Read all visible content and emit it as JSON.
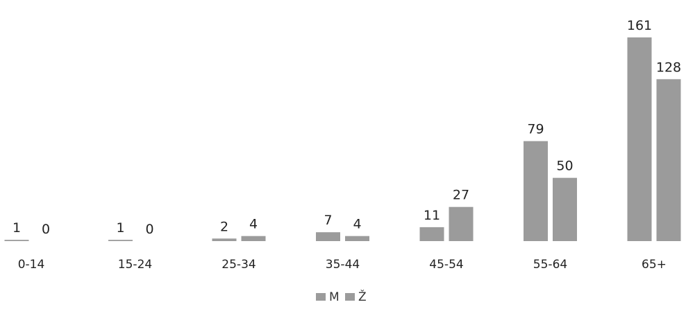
{
  "chart_data": {
    "type": "bar",
    "categories": [
      "0-14",
      "15-24",
      "25-34",
      "35-44",
      "45-54",
      "55-64",
      "65+"
    ],
    "series": [
      {
        "name": "M",
        "values": [
          1,
          1,
          2,
          7,
          11,
          79,
          161
        ],
        "color": "#9b9b9b"
      },
      {
        "name": "Ž",
        "values": [
          0,
          0,
          4,
          4,
          27,
          50,
          128
        ],
        "color": "#9b9b9b"
      }
    ],
    "ylim": [
      0,
      161
    ],
    "grid": false,
    "legend_position": "bottom-center",
    "data_labels": true,
    "axis_color": "#000000"
  }
}
